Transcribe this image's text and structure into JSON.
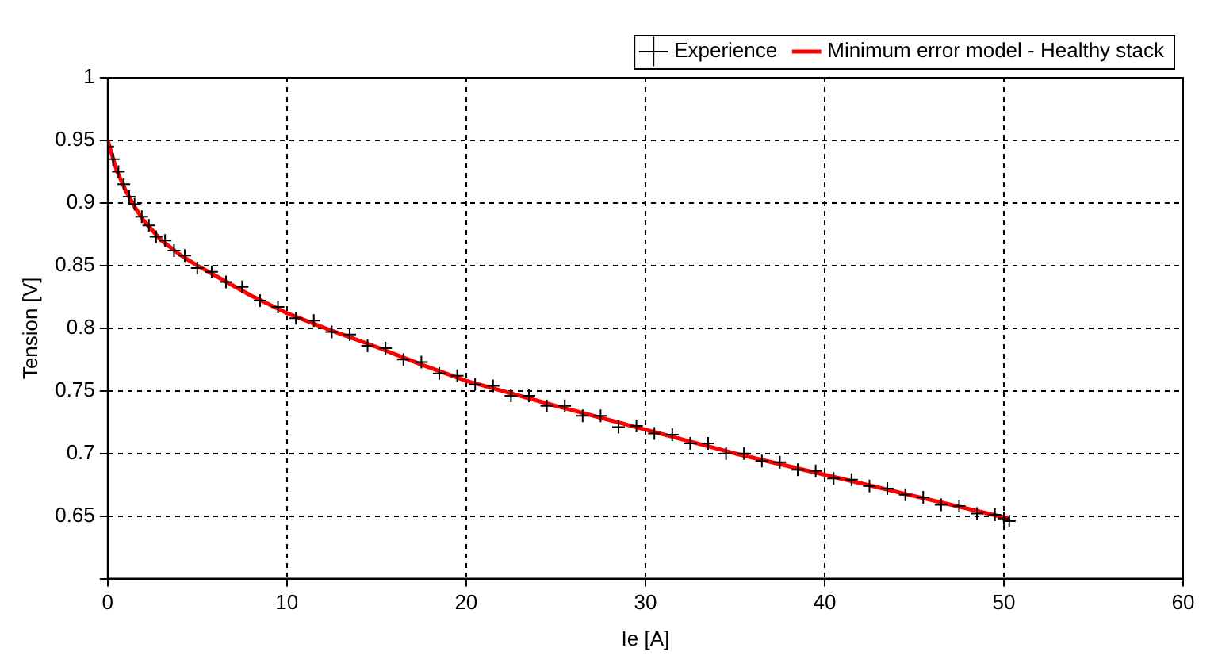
{
  "chart_data": {
    "type": "scatter",
    "xlabel": "Ie [A]",
    "ylabel": "Tension [V]",
    "xlim": [
      0,
      60
    ],
    "xticks": [
      0,
      10,
      20,
      30,
      40,
      50,
      60
    ],
    "ylim": [
      0.6,
      1
    ],
    "yticks": [
      {
        "value": 0.6,
        "label": null
      },
      0.65,
      0.7,
      0.75,
      0.8,
      0.85,
      0.9,
      0.95,
      1
    ],
    "grid": true,
    "legend": "top right",
    "series": [
      {
        "name": "Experience",
        "marker": "cross",
        "color": "#000000",
        "x": [
          0,
          0.3,
          0.6,
          0.9,
          1.2,
          1.5,
          1.9,
          2.3,
          2.7,
          3.2,
          3.7,
          4.3,
          5,
          5.8,
          6.6,
          7.5,
          8.5,
          9.5,
          10.5,
          11.5,
          12.5,
          13.5,
          14.5,
          15.5,
          16.5,
          17.5,
          18.5,
          19.5,
          20.5,
          21.5,
          22.5,
          23.5,
          24.5,
          25.5,
          26.5,
          27.5,
          28.5,
          29.5,
          30.5,
          31.5,
          32.5,
          33.5,
          34.5,
          35.5,
          36.5,
          37.5,
          38.5,
          39.5,
          40.5,
          41.5,
          42.5,
          43.5,
          44.5,
          45.5,
          46.5,
          47.5,
          48.5,
          49.5,
          50,
          50.3
        ],
        "values": [
          0.945,
          0.935,
          0.925,
          0.915,
          0.905,
          0.899,
          0.889,
          0.882,
          0.873,
          0.87,
          0.862,
          0.858,
          0.848,
          0.845,
          0.837,
          0.833,
          0.822,
          0.817,
          0.808,
          0.806,
          0.797,
          0.795,
          0.786,
          0.784,
          0.775,
          0.773,
          0.764,
          0.762,
          0.755,
          0.754,
          0.746,
          0.746,
          0.738,
          0.738,
          0.73,
          0.73,
          0.721,
          0.722,
          0.716,
          0.715,
          0.708,
          0.708,
          0.7,
          0.7,
          0.694,
          0.693,
          0.687,
          0.686,
          0.68,
          0.679,
          0.674,
          0.672,
          0.667,
          0.665,
          0.659,
          0.658,
          0.652,
          0.651,
          0.648,
          0.646
        ]
      },
      {
        "name": "Minimum error model - Healthy stack",
        "type": "line",
        "marker": "none",
        "line_style": "solid",
        "color": "#ff0000",
        "x": [
          0,
          0.5,
          1,
          1.5,
          2,
          3,
          4,
          5,
          6,
          8,
          10,
          12.5,
          15,
          17.5,
          20,
          25,
          30,
          35,
          40,
          45,
          50.3
        ],
        "values": [
          0.95,
          0.926,
          0.91,
          0.897,
          0.886,
          0.87,
          0.859,
          0.85,
          0.842,
          0.826,
          0.812,
          0.798,
          0.785,
          0.771,
          0.758,
          0.738,
          0.719,
          0.7,
          0.683,
          0.666,
          0.648
        ]
      }
    ]
  }
}
